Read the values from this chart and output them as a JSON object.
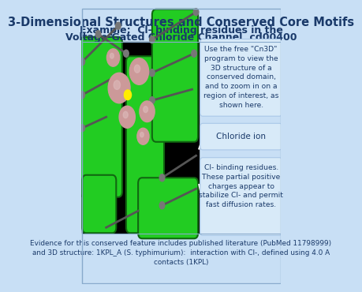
{
  "bg_color": "#c8dff5",
  "title_line1": "3-Dimensional Structures and Conserved Core Motifs",
  "title_line2": "Example:  Cl- binding residues in the",
  "title_line3": "Voltage-Gated Chloride Channel, cd00400",
  "box1_text": "Use the free \"Cn3D\"\nprogram to view the\n3D structure of a\nconserved domain,\nand to zoom in on a\nregion of interest, as\nshown here.",
  "box2_text": "Chloride ion",
  "box3_text": "Cl- binding residues.\nThese partial positive\ncharges appear to\nstabilize Cl- and permit\nfast diffusion rates.",
  "footer_text": "Evidence for this conserved feature includes published literature (PubMed 11798999)\nand 3D structure: 1KPL_A (S. typhimurium):  interaction with Cl-, defined using 4.0 A\ncontacts (1KPL)",
  "box_bg": "#d8eaf8",
  "box_border": "#aac8e8",
  "text_color": "#1a3a6a",
  "border_color": "#88aacc",
  "helix_color": "#22cc22",
  "helix_edge": "#116611",
  "gray_stick": "#555555",
  "gray_sphere": "#777777",
  "pink_sphere": "#cc9999",
  "pink_hi": "#ddbbbb",
  "cl_color": "#ffee00"
}
